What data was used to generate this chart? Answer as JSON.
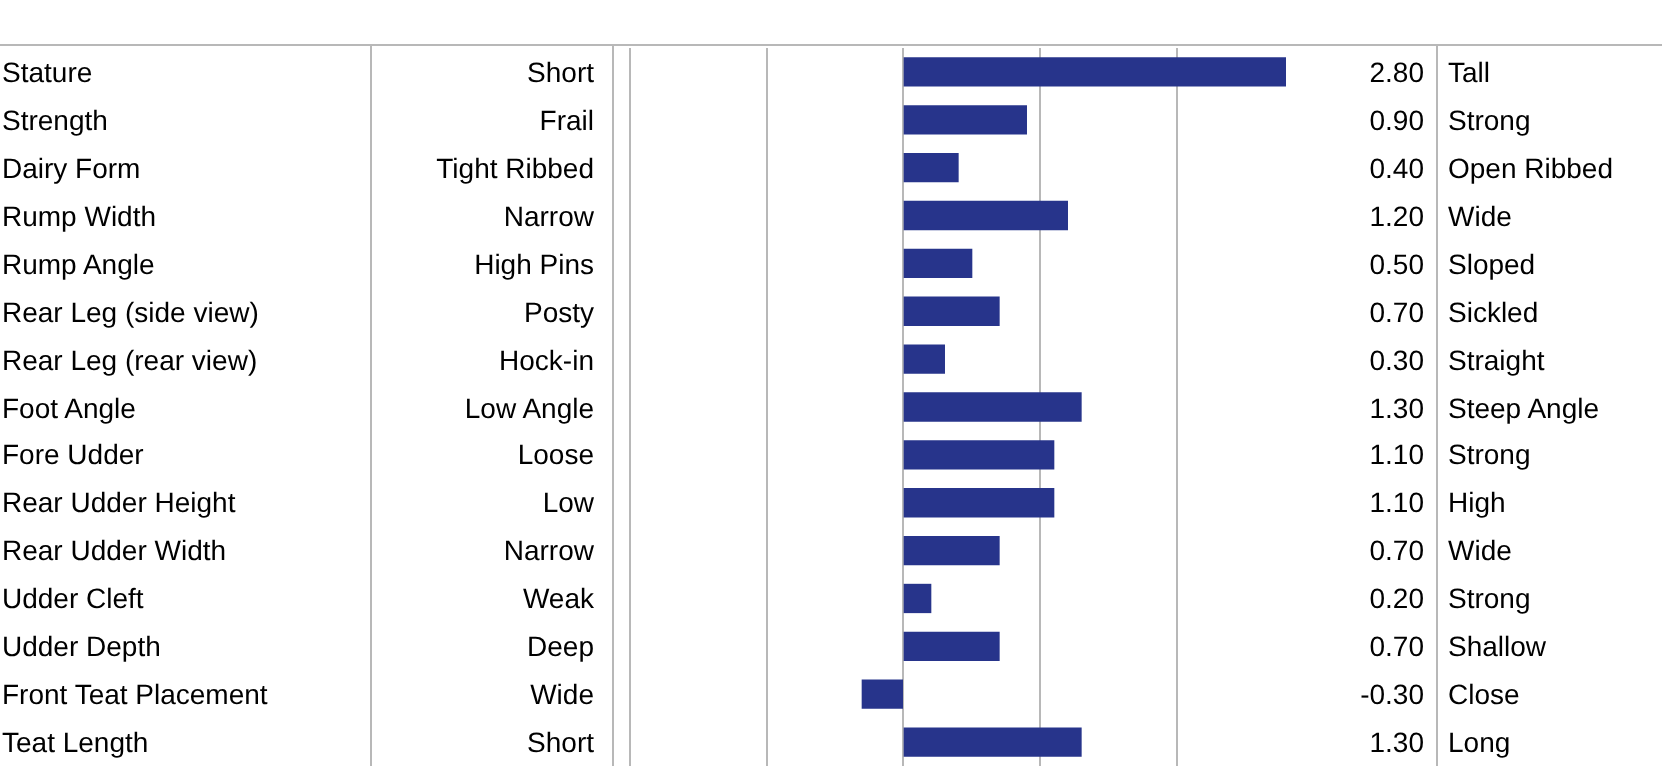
{
  "chart_data": {
    "type": "bar",
    "orientation": "horizontal",
    "categories": [
      "Stature",
      "Strength",
      "Dairy Form",
      "Rump Width",
      "Rump Angle",
      "Rear Leg (side view)",
      "Rear Leg (rear view)",
      "Foot Angle",
      "Fore Udder",
      "Rear Udder Height",
      "Rear Udder Width",
      "Udder Cleft",
      "Udder Depth",
      "Front Teat Placement",
      "Teat Length"
    ],
    "values": [
      2.8,
      0.9,
      0.4,
      1.2,
      0.5,
      0.7,
      0.3,
      1.3,
      1.1,
      1.1,
      0.7,
      0.2,
      0.7,
      -0.3,
      1.3
    ],
    "value_labels": [
      "2.80",
      "0.90",
      "0.40",
      "1.20",
      "0.50",
      "0.70",
      "0.30",
      "1.30",
      "1.10",
      "1.10",
      "0.70",
      "0.20",
      "0.70",
      "-0.30",
      "1.30"
    ],
    "color": "#27348b",
    "xlim": [
      -2,
      2.8
    ],
    "xticks": [
      {
        "value": -2,
        "label": null
      },
      {
        "value": -1,
        "label": null
      },
      {
        "value": 0,
        "label": null
      },
      {
        "value": 1,
        "label": null
      },
      {
        "value": 2,
        "label": null
      }
    ],
    "grid": "x",
    "annotations": [
      "Short",
      "Tall",
      "Frail",
      "Strong",
      "Tight Ribbed",
      "Open Ribbed",
      "Narrow",
      "Wide",
      "High Pins",
      "Sloped",
      "Posty",
      "Sickled",
      "Hock-in",
      "Straight",
      "Low Angle",
      "Steep Angle",
      "Loose",
      "Strong",
      "Low",
      "High",
      "Narrow",
      "Wide",
      "Weak",
      "Strong",
      "Deep",
      "Shallow",
      "Wide",
      "Close",
      "Short",
      "Long"
    ]
  }
}
